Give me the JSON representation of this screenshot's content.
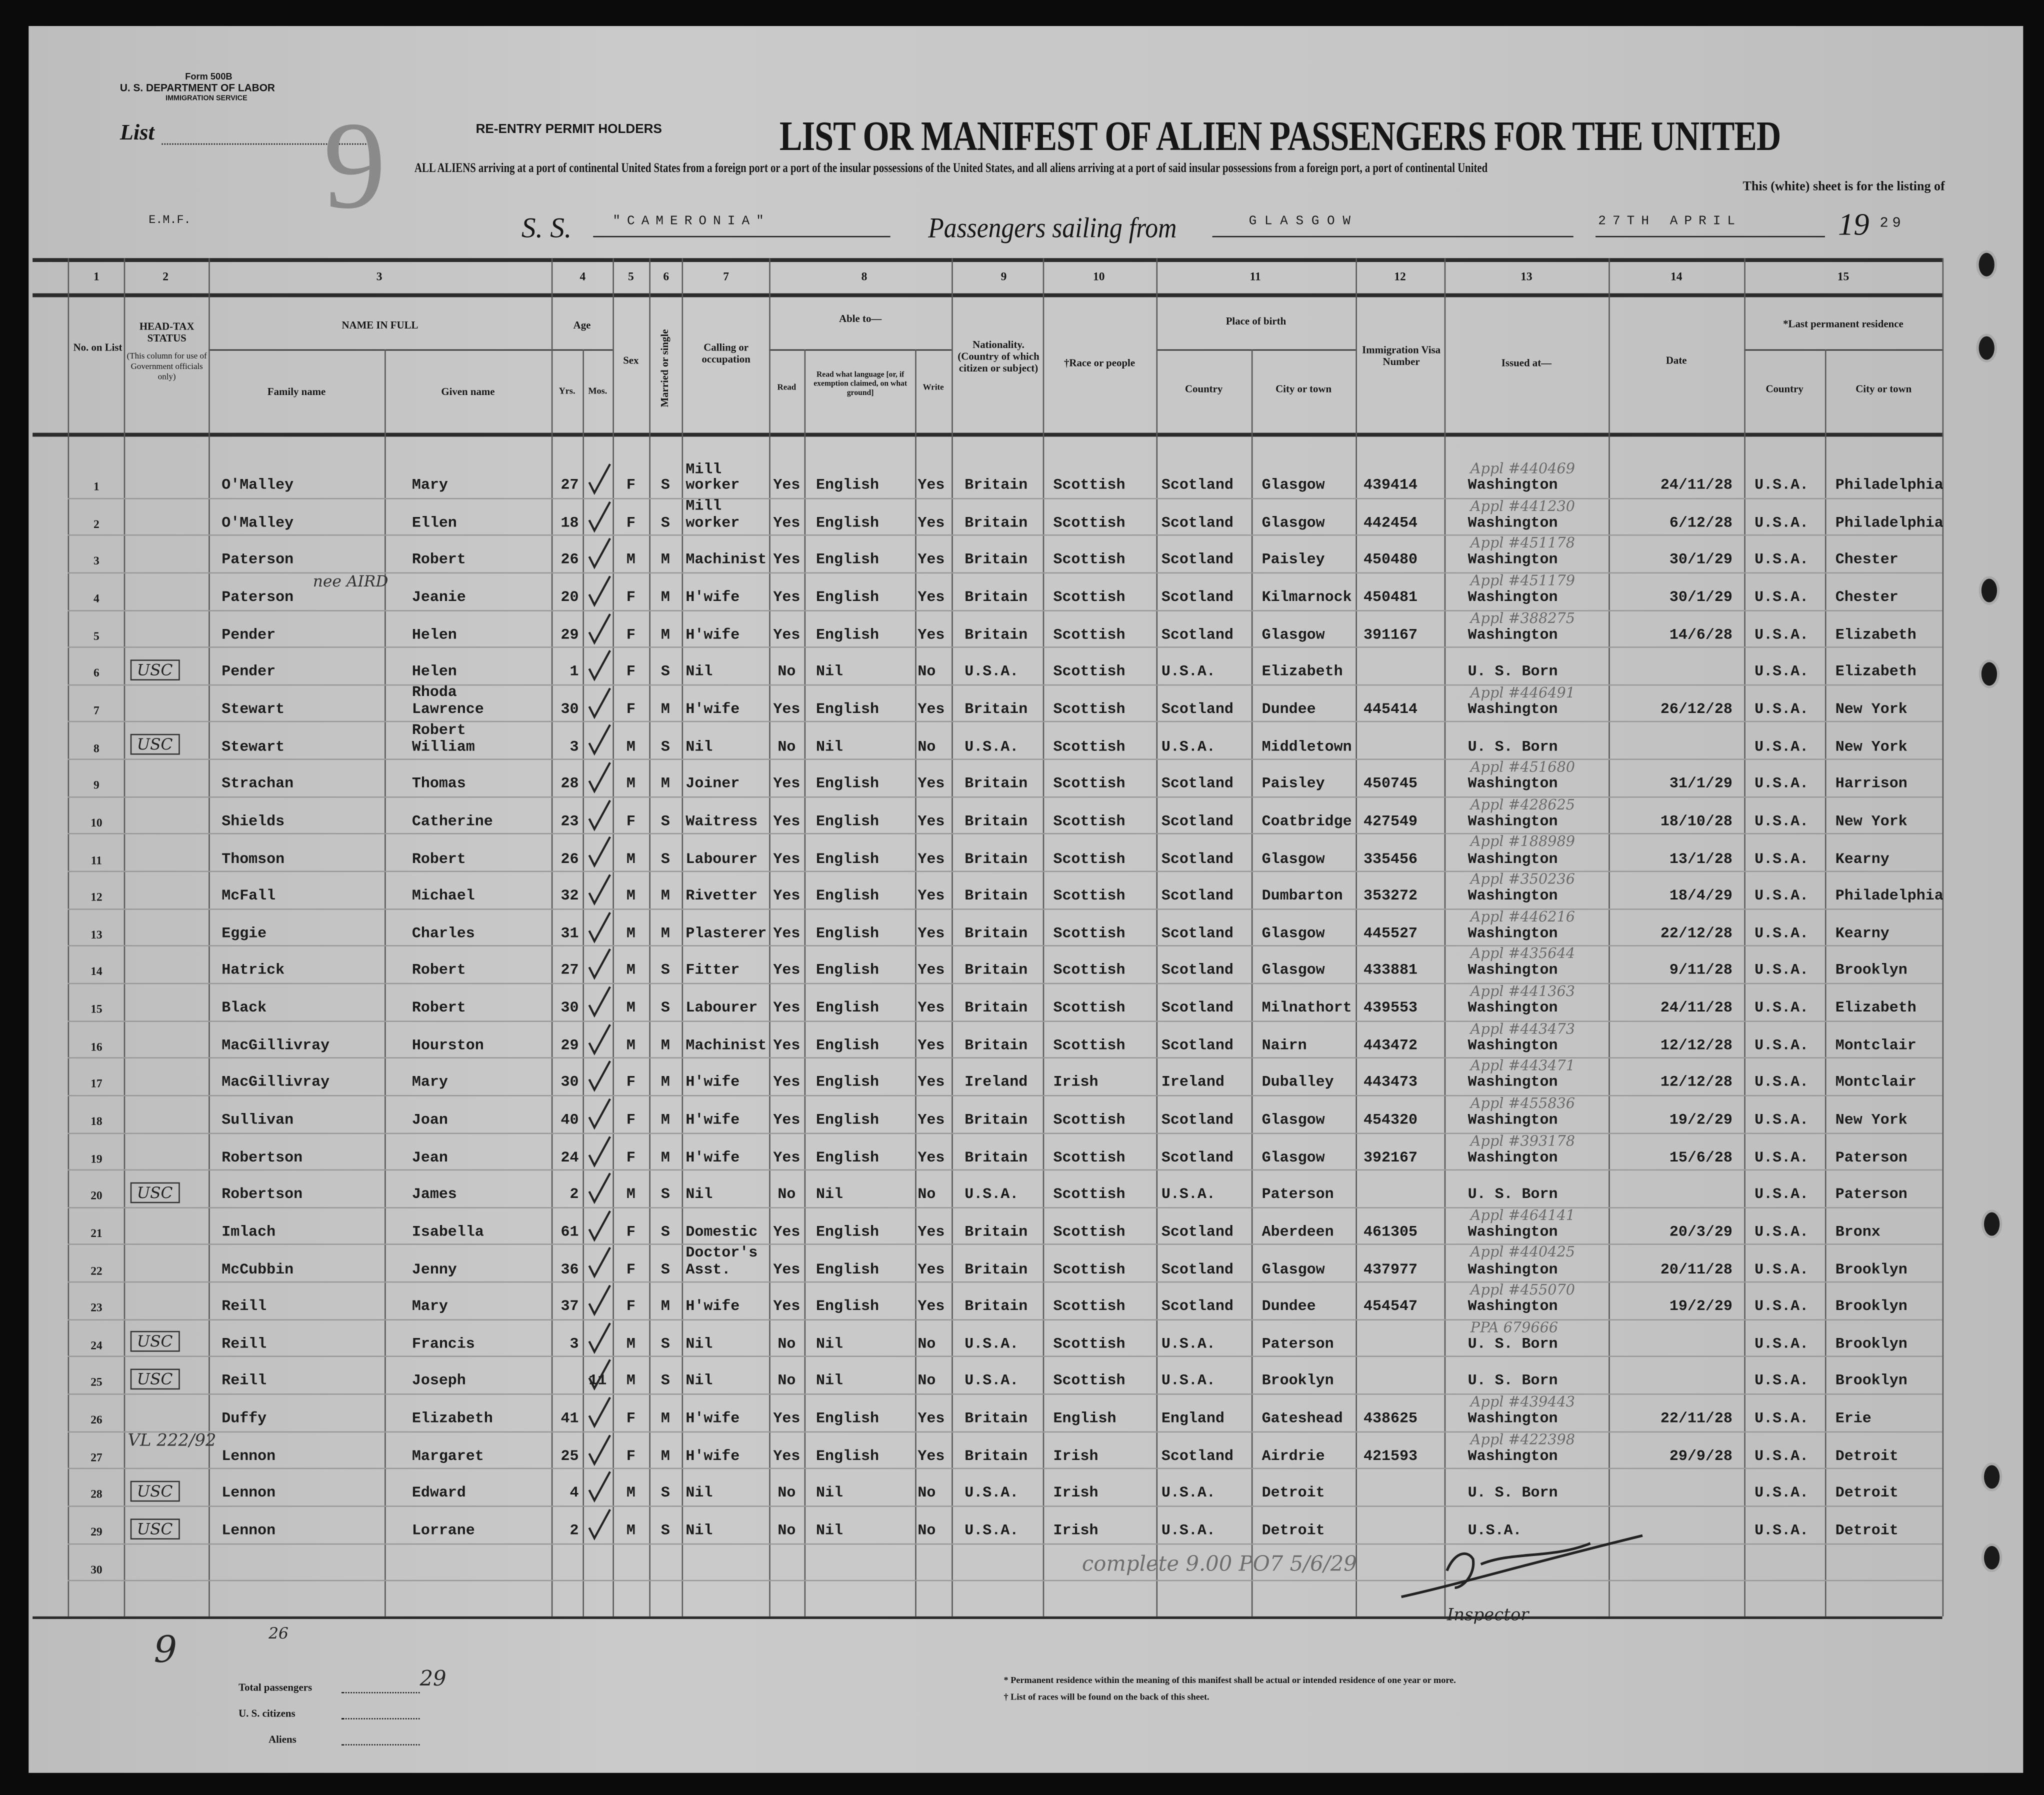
{
  "form": {
    "form_number": "Form 500B",
    "department": "U. S. DEPARTMENT OF LABOR",
    "service": "IMMIGRATION SERVICE",
    "list_label": "List",
    "list_number": "9",
    "stamp": "RE-ENTRY PERMIT HOLDERS",
    "title": "LIST OR MANIFEST OF ALIEN PASSENGERS FOR THE UNITED",
    "subtitle_1": "ALL ALIENS arriving at a port of continental United States from a foreign port or a port of the insular possessions of the United States, and all aliens arriving at a port of said insular possessions from a foreign port, a port of continental United",
    "subtitle_2": "This (white) sheet is for the listing of",
    "emf": "E.M.F.",
    "ss_label": "S. S.",
    "ship": "\"CAMERONIA\"",
    "sailing_label": "Passengers sailing from",
    "port": "GLASGOW",
    "date": "27TH APRIL",
    "year_prefix": "19",
    "year_suffix": "29"
  },
  "columns": {
    "numbers": [
      "1",
      "2",
      "3",
      "4",
      "5",
      "6",
      "7",
      "8",
      "9",
      "10",
      "11",
      "12",
      "13",
      "14",
      "15"
    ],
    "no_on_list": "No. on List",
    "head_tax": "HEAD-TAX STATUS",
    "head_tax_note": "(This column for use of Government officials only)",
    "name_in_full": "NAME IN FULL",
    "family_name": "Family name",
    "given_name": "Given name",
    "age": "Age",
    "yrs": "Yrs.",
    "mos": "Mos.",
    "sex": "Sex",
    "married": "Married or single",
    "calling": "Calling or occupation",
    "able_to": "Able to—",
    "read": "Read",
    "language": "Read what language [or, if exemption claimed, on what ground]",
    "write": "Write",
    "nationality": "Nationality. (Country of which citizen or subject)",
    "race": "†Race or people",
    "place_of_birth": "Place of birth",
    "country": "Country",
    "city": "City or town",
    "visa": "Immigration Visa Number",
    "issued_at": "Issued at—",
    "date": "Date",
    "last_residence": "*Last permanent residence",
    "res_country": "Country",
    "res_city": "City or town"
  },
  "rows": [
    {
      "no": "1",
      "tax": "",
      "family": "O'Malley",
      "given": "Mary",
      "yrs": "27",
      "mos": "",
      "sex": "F",
      "married": "S",
      "occupation": "Mill\nworker",
      "read": "Yes",
      "language": "English",
      "write": "Yes",
      "nationality": "Britain",
      "race": "Scottish",
      "birth_country": "Scotland",
      "birth_city": "Glasgow",
      "visa": "439414",
      "issued_at": "Washington",
      "date": "24/11/28",
      "res_country": "U.S.A.",
      "res_city": "Philadelphia",
      "note": "Appl #440469"
    },
    {
      "no": "2",
      "tax": "",
      "family": "O'Malley",
      "given": "Ellen",
      "yrs": "18",
      "mos": "",
      "sex": "F",
      "married": "S",
      "occupation": "Mill\nworker",
      "read": "Yes",
      "language": "English",
      "write": "Yes",
      "nationality": "Britain",
      "race": "Scottish",
      "birth_country": "Scotland",
      "birth_city": "Glasgow",
      "visa": "442454",
      "issued_at": "Washington",
      "date": "6/12/28",
      "res_country": "U.S.A.",
      "res_city": "Philadelphia",
      "note": "Appl #441230"
    },
    {
      "no": "3",
      "tax": "",
      "family": "Paterson",
      "given": "Robert",
      "yrs": "26",
      "mos": "",
      "sex": "M",
      "married": "M",
      "occupation": "Machinist",
      "read": "Yes",
      "language": "English",
      "write": "Yes",
      "nationality": "Britain",
      "race": "Scottish",
      "birth_country": "Scotland",
      "birth_city": "Paisley",
      "visa": "450480",
      "issued_at": "Washington",
      "date": "30/1/29",
      "res_country": "U.S.A.",
      "res_city": "Chester",
      "note": "Appl #451178"
    },
    {
      "no": "4",
      "tax": "",
      "family": "Paterson",
      "given": "Jeanie",
      "yrs": "20",
      "mos": "",
      "sex": "F",
      "married": "M",
      "occupation": "H'wife",
      "read": "Yes",
      "language": "English",
      "write": "Yes",
      "nationality": "Britain",
      "race": "Scottish",
      "birth_country": "Scotland",
      "birth_city": "Kilmarnock",
      "visa": "450481",
      "issued_at": "Washington",
      "date": "30/1/29",
      "res_country": "U.S.A.",
      "res_city": "Chester",
      "note": "Appl #451179",
      "family_note": "nee AIRD"
    },
    {
      "no": "5",
      "tax": "",
      "family": "Pender",
      "given": "Helen",
      "yrs": "29",
      "mos": "",
      "sex": "F",
      "married": "M",
      "occupation": "H'wife",
      "read": "Yes",
      "language": "English",
      "write": "Yes",
      "nationality": "Britain",
      "race": "Scottish",
      "birth_country": "Scotland",
      "birth_city": "Glasgow",
      "visa": "391167",
      "issued_at": "Washington",
      "date": "14/6/28",
      "res_country": "U.S.A.",
      "res_city": "Elizabeth",
      "note": "Appl #388275"
    },
    {
      "no": "6",
      "tax": "USC",
      "family": "Pender",
      "given": "Helen",
      "yrs": "1",
      "mos": "",
      "sex": "F",
      "married": "S",
      "occupation": "Nil",
      "read": "No",
      "language": "Nil",
      "write": "No",
      "nationality": "U.S.A.",
      "race": "Scottish",
      "birth_country": "U.S.A.",
      "birth_city": "Elizabeth",
      "visa": "",
      "issued_at": "U. S. Born",
      "date": "",
      "res_country": "U.S.A.",
      "res_city": "Elizabeth",
      "note": ""
    },
    {
      "no": "7",
      "tax": "",
      "family": "Stewart",
      "given": "Rhoda\nLawrence",
      "yrs": "30",
      "mos": "",
      "sex": "F",
      "married": "M",
      "occupation": "H'wife",
      "read": "Yes",
      "language": "English",
      "write": "Yes",
      "nationality": "Britain",
      "race": "Scottish",
      "birth_country": "Scotland",
      "birth_city": "Dundee",
      "visa": "445414",
      "issued_at": "Washington",
      "date": "26/12/28",
      "res_country": "U.S.A.",
      "res_city": "New York",
      "note": "Appl #446491"
    },
    {
      "no": "8",
      "tax": "USC",
      "family": "Stewart",
      "given": "Robert\nWilliam",
      "yrs": "3",
      "mos": "",
      "sex": "M",
      "married": "S",
      "occupation": "Nil",
      "read": "No",
      "language": "Nil",
      "write": "No",
      "nationality": "U.S.A.",
      "race": "Scottish",
      "birth_country": "U.S.A.",
      "birth_city": "Middletown",
      "visa": "",
      "issued_at": "U. S. Born",
      "date": "",
      "res_country": "U.S.A.",
      "res_city": "New York",
      "note": ""
    },
    {
      "no": "9",
      "tax": "",
      "family": "Strachan",
      "given": "Thomas",
      "yrs": "28",
      "mos": "",
      "sex": "M",
      "married": "M",
      "occupation": "Joiner",
      "read": "Yes",
      "language": "English",
      "write": "Yes",
      "nationality": "Britain",
      "race": "Scottish",
      "birth_country": "Scotland",
      "birth_city": "Paisley",
      "visa": "450745",
      "issued_at": "Washington",
      "date": "31/1/29",
      "res_country": "U.S.A.",
      "res_city": "Harrison",
      "note": "Appl #451680"
    },
    {
      "no": "10",
      "tax": "",
      "family": "Shields",
      "given": "Catherine",
      "yrs": "23",
      "mos": "",
      "sex": "F",
      "married": "S",
      "occupation": "Waitress",
      "read": "Yes",
      "language": "English",
      "write": "Yes",
      "nationality": "Britain",
      "race": "Scottish",
      "birth_country": "Scotland",
      "birth_city": "Coatbridge",
      "visa": "427549",
      "issued_at": "Washington",
      "date": "18/10/28",
      "res_country": "U.S.A.",
      "res_city": "New York",
      "note": "Appl #428625"
    },
    {
      "no": "11",
      "tax": "",
      "family": "Thomson",
      "given": "Robert",
      "yrs": "26",
      "mos": "",
      "sex": "M",
      "married": "S",
      "occupation": "Labourer",
      "read": "Yes",
      "language": "English",
      "write": "Yes",
      "nationality": "Britain",
      "race": "Scottish",
      "birth_country": "Scotland",
      "birth_city": "Glasgow",
      "visa": "335456",
      "issued_at": "Washington",
      "date": "13/1/28",
      "res_country": "U.S.A.",
      "res_city": "Kearny",
      "note": "Appl #188989"
    },
    {
      "no": "12",
      "tax": "",
      "family": "McFall",
      "given": "Michael",
      "yrs": "32",
      "mos": "",
      "sex": "M",
      "married": "M",
      "occupation": "Rivetter",
      "read": "Yes",
      "language": "English",
      "write": "Yes",
      "nationality": "Britain",
      "race": "Scottish",
      "birth_country": "Scotland",
      "birth_city": "Dumbarton",
      "visa": "353272",
      "issued_at": "Washington",
      "date": "18/4/29",
      "res_country": "U.S.A.",
      "res_city": "Philadelphia",
      "note": "Appl #350236"
    },
    {
      "no": "13",
      "tax": "",
      "family": "Eggie",
      "given": "Charles",
      "yrs": "31",
      "mos": "",
      "sex": "M",
      "married": "M",
      "occupation": "Plasterer",
      "read": "Yes",
      "language": "English",
      "write": "Yes",
      "nationality": "Britain",
      "race": "Scottish",
      "birth_country": "Scotland",
      "birth_city": "Glasgow",
      "visa": "445527",
      "issued_at": "Washington",
      "date": "22/12/28",
      "res_country": "U.S.A.",
      "res_city": "Kearny",
      "note": "Appl #446216"
    },
    {
      "no": "14",
      "tax": "",
      "family": "Hatrick",
      "given": "Robert",
      "yrs": "27",
      "mos": "",
      "sex": "M",
      "married": "S",
      "occupation": "Fitter",
      "read": "Yes",
      "language": "English",
      "write": "Yes",
      "nationality": "Britain",
      "race": "Scottish",
      "birth_country": "Scotland",
      "birth_city": "Glasgow",
      "visa": "433881",
      "issued_at": "Washington",
      "date": "9/11/28",
      "res_country": "U.S.A.",
      "res_city": "Brooklyn",
      "note": "Appl #435644"
    },
    {
      "no": "15",
      "tax": "",
      "family": "Black",
      "given": "Robert",
      "yrs": "30",
      "mos": "",
      "sex": "M",
      "married": "S",
      "occupation": "Labourer",
      "read": "Yes",
      "language": "English",
      "write": "Yes",
      "nationality": "Britain",
      "race": "Scottish",
      "birth_country": "Scotland",
      "birth_city": "Milnathort",
      "visa": "439553",
      "issued_at": "Washington",
      "date": "24/11/28",
      "res_country": "U.S.A.",
      "res_city": "Elizabeth",
      "note": "Appl #441363"
    },
    {
      "no": "16",
      "tax": "",
      "family": "MacGillivray",
      "given": "Hourston",
      "yrs": "29",
      "mos": "",
      "sex": "M",
      "married": "M",
      "occupation": "Machinist",
      "read": "Yes",
      "language": "English",
      "write": "Yes",
      "nationality": "Britain",
      "race": "Scottish",
      "birth_country": "Scotland",
      "birth_city": "Nairn",
      "visa": "443472",
      "issued_at": "Washington",
      "date": "12/12/28",
      "res_country": "U.S.A.",
      "res_city": "Montclair",
      "note": "Appl #443473"
    },
    {
      "no": "17",
      "tax": "",
      "family": "MacGillivray",
      "given": "Mary",
      "yrs": "30",
      "mos": "",
      "sex": "F",
      "married": "M",
      "occupation": "H'wife",
      "read": "Yes",
      "language": "English",
      "write": "Yes",
      "nationality": "Ireland",
      "race": "Irish",
      "birth_country": "Ireland",
      "birth_city": "Duballey",
      "visa": "443473",
      "issued_at": "Washington",
      "date": "12/12/28",
      "res_country": "U.S.A.",
      "res_city": "Montclair",
      "note": "Appl #443471"
    },
    {
      "no": "18",
      "tax": "",
      "family": "Sullivan",
      "given": "Joan",
      "yrs": "40",
      "mos": "",
      "sex": "F",
      "married": "M",
      "occupation": "H'wife",
      "read": "Yes",
      "language": "English",
      "write": "Yes",
      "nationality": "Britain",
      "race": "Scottish",
      "birth_country": "Scotland",
      "birth_city": "Glasgow",
      "visa": "454320",
      "issued_at": "Washington",
      "date": "19/2/29",
      "res_country": "U.S.A.",
      "res_city": "New York",
      "note": "Appl #455836"
    },
    {
      "no": "19",
      "tax": "",
      "family": "Robertson",
      "given": "Jean",
      "yrs": "24",
      "mos": "",
      "sex": "F",
      "married": "M",
      "occupation": "H'wife",
      "read": "Yes",
      "language": "English",
      "write": "Yes",
      "nationality": "Britain",
      "race": "Scottish",
      "birth_country": "Scotland",
      "birth_city": "Glasgow",
      "visa": "392167",
      "issued_at": "Washington",
      "date": "15/6/28",
      "res_country": "U.S.A.",
      "res_city": "Paterson",
      "note": "Appl #393178"
    },
    {
      "no": "20",
      "tax": "USC",
      "family": "Robertson",
      "given": "James",
      "yrs": "2",
      "mos": "",
      "sex": "M",
      "married": "S",
      "occupation": "Nil",
      "read": "No",
      "language": "Nil",
      "write": "No",
      "nationality": "U.S.A.",
      "race": "Scottish",
      "birth_country": "U.S.A.",
      "birth_city": "Paterson",
      "visa": "",
      "issued_at": "U. S. Born",
      "date": "",
      "res_country": "U.S.A.",
      "res_city": "Paterson",
      "note": ""
    },
    {
      "no": "21",
      "tax": "",
      "family": "Imlach",
      "given": "Isabella",
      "yrs": "61",
      "mos": "",
      "sex": "F",
      "married": "S",
      "occupation": "Domestic",
      "read": "Yes",
      "language": "English",
      "write": "Yes",
      "nationality": "Britain",
      "race": "Scottish",
      "birth_country": "Scotland",
      "birth_city": "Aberdeen",
      "visa": "461305",
      "issued_at": "Washington",
      "date": "20/3/29",
      "res_country": "U.S.A.",
      "res_city": "Bronx",
      "note": "Appl #464141"
    },
    {
      "no": "22",
      "tax": "",
      "family": "McCubbin",
      "given": "Jenny",
      "yrs": "36",
      "mos": "",
      "sex": "F",
      "married": "S",
      "occupation": "Doctor's\nAsst.",
      "read": "Yes",
      "language": "English",
      "write": "Yes",
      "nationality": "Britain",
      "race": "Scottish",
      "birth_country": "Scotland",
      "birth_city": "Glasgow",
      "visa": "437977",
      "issued_at": "Washington",
      "date": "20/11/28",
      "res_country": "U.S.A.",
      "res_city": "Brooklyn",
      "note": "Appl #440425"
    },
    {
      "no": "23",
      "tax": "",
      "family": "Reill",
      "given": "Mary",
      "yrs": "37",
      "mos": "",
      "sex": "F",
      "married": "M",
      "occupation": "H'wife",
      "read": "Yes",
      "language": "English",
      "write": "Yes",
      "nationality": "Britain",
      "race": "Scottish",
      "birth_country": "Scotland",
      "birth_city": "Dundee",
      "visa": "454547",
      "issued_at": "Washington",
      "date": "19/2/29",
      "res_country": "U.S.A.",
      "res_city": "Brooklyn",
      "note": "Appl #455070"
    },
    {
      "no": "24",
      "tax": "USC",
      "family": "Reill",
      "given": "Francis",
      "yrs": "3",
      "mos": "",
      "sex": "M",
      "married": "S",
      "occupation": "Nil",
      "read": "No",
      "language": "Nil",
      "write": "No",
      "nationality": "U.S.A.",
      "race": "Scottish",
      "birth_country": "U.S.A.",
      "birth_city": "Paterson",
      "visa": "",
      "issued_at": "U. S. Born",
      "date": "",
      "res_country": "U.S.A.",
      "res_city": "Brooklyn",
      "note": "PPA 679666"
    },
    {
      "no": "25",
      "tax": "USC",
      "family": "Reill",
      "given": "Joseph",
      "yrs": "",
      "mos": "11",
      "sex": "M",
      "married": "S",
      "occupation": "Nil",
      "read": "No",
      "language": "Nil",
      "write": "No",
      "nationality": "U.S.A.",
      "race": "Scottish",
      "birth_country": "U.S.A.",
      "birth_city": "Brooklyn",
      "visa": "",
      "issued_at": "U. S. Born",
      "date": "",
      "res_country": "U.S.A.",
      "res_city": "Brooklyn",
      "note": ""
    },
    {
      "no": "26",
      "tax": "",
      "family": "Duffy",
      "given": "Elizabeth",
      "yrs": "41",
      "mos": "",
      "sex": "F",
      "married": "M",
      "occupation": "H'wife",
      "read": "Yes",
      "language": "English",
      "write": "Yes",
      "nationality": "Britain",
      "race": "English",
      "birth_country": "England",
      "birth_city": "Gateshead",
      "visa": "438625",
      "issued_at": "Washington",
      "date": "22/11/28",
      "res_country": "U.S.A.",
      "res_city": "Erie",
      "note": "Appl #439443"
    },
    {
      "no": "27",
      "tax": "",
      "family": "Lennon",
      "given": "Margaret",
      "yrs": "25",
      "mos": "",
      "sex": "F",
      "married": "M",
      "occupation": "H'wife",
      "read": "Yes",
      "language": "English",
      "write": "Yes",
      "nationality": "Britain",
      "race": "Irish",
      "birth_country": "Scotland",
      "birth_city": "Airdrie",
      "visa": "421593",
      "issued_at": "Washington",
      "date": "29/9/28",
      "res_country": "U.S.A.",
      "res_city": "Detroit",
      "note": "Appl #422398",
      "family_note": "VL 222/92"
    },
    {
      "no": "28",
      "tax": "USC",
      "family": "Lennon",
      "given": "Edward",
      "yrs": "4",
      "mos": "",
      "sex": "M",
      "married": "S",
      "occupation": "Nil",
      "read": "No",
      "language": "Nil",
      "write": "No",
      "nationality": "U.S.A.",
      "race": "Irish",
      "birth_country": "U.S.A.",
      "birth_city": "Detroit",
      "visa": "",
      "issued_at": "U. S. Born",
      "date": "",
      "res_country": "U.S.A.",
      "res_city": "Detroit",
      "note": ""
    },
    {
      "no": "29",
      "tax": "USC",
      "family": "Lennon",
      "given": "Lorrane",
      "yrs": "2",
      "mos": "",
      "sex": "M",
      "married": "S",
      "occupation": "Nil",
      "read": "No",
      "language": "Nil",
      "write": "No",
      "nationality": "U.S.A.",
      "race": "Irish",
      "birth_country": "U.S.A.",
      "birth_city": "Detroit",
      "visa": "",
      "issued_at": "U.S.A.",
      "date": "",
      "res_country": "U.S.A.",
      "res_city": "Detroit",
      "note": ""
    },
    {
      "no": "30",
      "tax": "",
      "family": "",
      "given": "",
      "yrs": "",
      "mos": "",
      "sex": "",
      "married": "",
      "occupation": "",
      "read": "",
      "language": "",
      "write": "",
      "nationality": "",
      "race": "",
      "birth_country": "",
      "birth_city": "",
      "visa": "",
      "issued_at": "",
      "date": "",
      "res_country": "",
      "res_city": "",
      "note": ""
    }
  ],
  "annotations": {
    "complete_note": "complete 9.00 PO7 5/6/29",
    "inspector": "Inspector",
    "margin_9": "9",
    "margin_26": "26"
  },
  "footer": {
    "total_label": "Total passengers",
    "total_value": "29",
    "citizens_label": "U. S. citizens",
    "aliens_label": "Aliens",
    "footnote_1": "* Permanent residence within the meaning of this manifest shall be actual or intended residence of one year or more.",
    "footnote_2": "† List of races will be found on the back of this sheet."
  }
}
